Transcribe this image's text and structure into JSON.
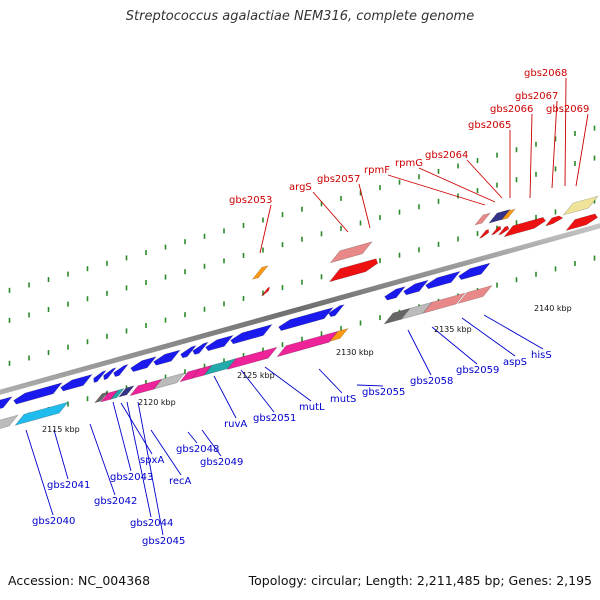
{
  "title": "Streptococcus agalactiae NEM316, complete genome",
  "footer": {
    "accession": "Accession: NC_004368",
    "summary": "Topology: circular; Length: 2,211,485 bp; Genes: 2,195"
  },
  "colors": {
    "upper_labels": "#cc0000",
    "lower_labels": "#0000cc",
    "backbone": "#888888",
    "tick_marks": "#2a8a2a"
  },
  "scale_ticks": [
    "2115 kbp",
    "2120 kbp",
    "2125 kbp",
    "2130 kbp",
    "2135 kbp",
    "2140 kbp"
  ],
  "upper_labels": [
    "gbs2053",
    "argS",
    "gbs2057",
    "rpmF",
    "rpmG",
    "gbs2064",
    "gbs2065",
    "gbs2066",
    "gbs2067",
    "gbs2068",
    "gbs2069"
  ],
  "lower_labels": [
    "gbs2040",
    "gbs2041",
    "gbs2042",
    "gbs2043",
    "spxA",
    "gbs2044",
    "gbs2045",
    "recA",
    "gbs2048",
    "gbs2049",
    "ruvA",
    "gbs2051",
    "mutL",
    "mutS",
    "gbs2055",
    "gbs2058",
    "gbs2059",
    "aspS",
    "hisS"
  ]
}
